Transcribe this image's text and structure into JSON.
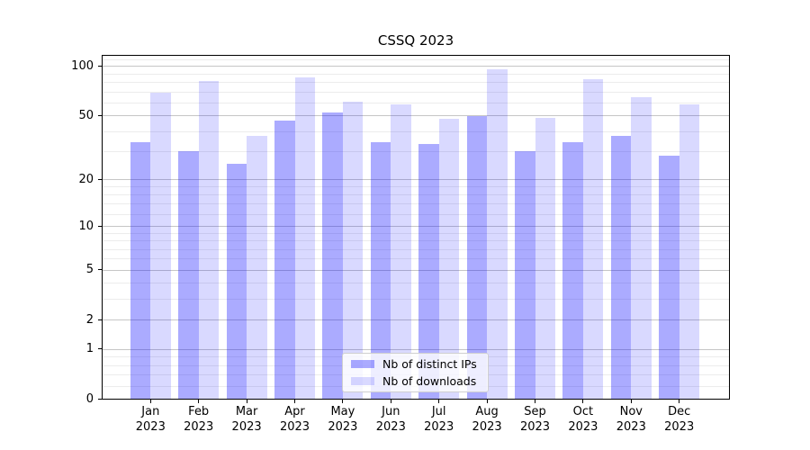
{
  "chart_data": {
    "type": "bar",
    "title": "CSSQ 2023",
    "year_label": "2023",
    "months": [
      "Jan",
      "Feb",
      "Mar",
      "Apr",
      "May",
      "Jun",
      "Jul",
      "Aug",
      "Sep",
      "Oct",
      "Nov",
      "Dec"
    ],
    "categories": [
      "Jan 2023",
      "Feb 2023",
      "Mar 2023",
      "Apr 2023",
      "May 2023",
      "Jun 2023",
      "Jul 2023",
      "Aug 2023",
      "Sep 2023",
      "Oct 2023",
      "Nov 2023",
      "Dec 2023"
    ],
    "series": [
      {
        "name": "Nb of distinct IPs",
        "color_hex": "#aaaaff",
        "rgba": "rgba(0,0,255,0.33)",
        "values": [
          34,
          30,
          25,
          46,
          52,
          34,
          33,
          49,
          30,
          34,
          37,
          28
        ]
      },
      {
        "name": "Nb of downloads",
        "color_hex": "#d9d9ff",
        "rgba": "rgba(0,0,255,0.15)",
        "values": [
          68,
          81,
          37,
          85,
          60,
          58,
          47,
          95,
          48,
          83,
          64,
          58
        ]
      }
    ],
    "y_axis": {
      "scale": "log10(1+x)",
      "ticks": [
        0,
        1,
        2,
        5,
        10,
        20,
        50,
        100
      ],
      "minor_gridlines": [
        0.2,
        0.4,
        0.6,
        0.8,
        3,
        4,
        6,
        7,
        8,
        9,
        12,
        14,
        16,
        18,
        30,
        40,
        60,
        70,
        80,
        90,
        110
      ],
      "top_value": 115
    },
    "legend": {
      "position": "lower-center"
    },
    "grid": true,
    "colors": {
      "spine": "#000000",
      "major_grid": "#c6c6c6",
      "minor_grid": "#ececec",
      "text": "#000000",
      "background": "#ffffff"
    }
  }
}
